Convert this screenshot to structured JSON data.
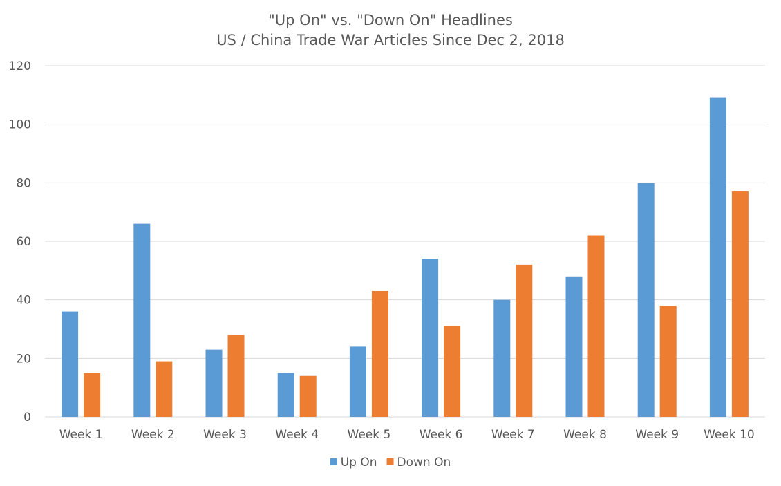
{
  "chart_data": {
    "type": "bar",
    "title": "\"Up On\" vs. \"Down On\" Headlines",
    "subtitle": "US / China Trade War Articles Since Dec 2, 2018",
    "xlabel": "",
    "ylabel": "",
    "categories": [
      "Week 1",
      "Week 2",
      "Week 3",
      "Week 4",
      "Week 5",
      "Week 6",
      "Week 7",
      "Week 8",
      "Week 9",
      "Week 10"
    ],
    "series": [
      {
        "name": "Up On",
        "color": "#5b9bd5",
        "values": [
          36,
          66,
          23,
          15,
          24,
          54,
          40,
          48,
          80,
          109
        ]
      },
      {
        "name": "Down On",
        "color": "#ed7d31",
        "values": [
          15,
          19,
          28,
          14,
          43,
          31,
          52,
          62,
          38,
          77
        ]
      }
    ],
    "ylim": [
      0,
      120
    ],
    "yticks": [
      0,
      20,
      40,
      60,
      80,
      100,
      120
    ],
    "grid": true,
    "gridline_color": "#d9d9d9",
    "legend_position": "bottom"
  }
}
